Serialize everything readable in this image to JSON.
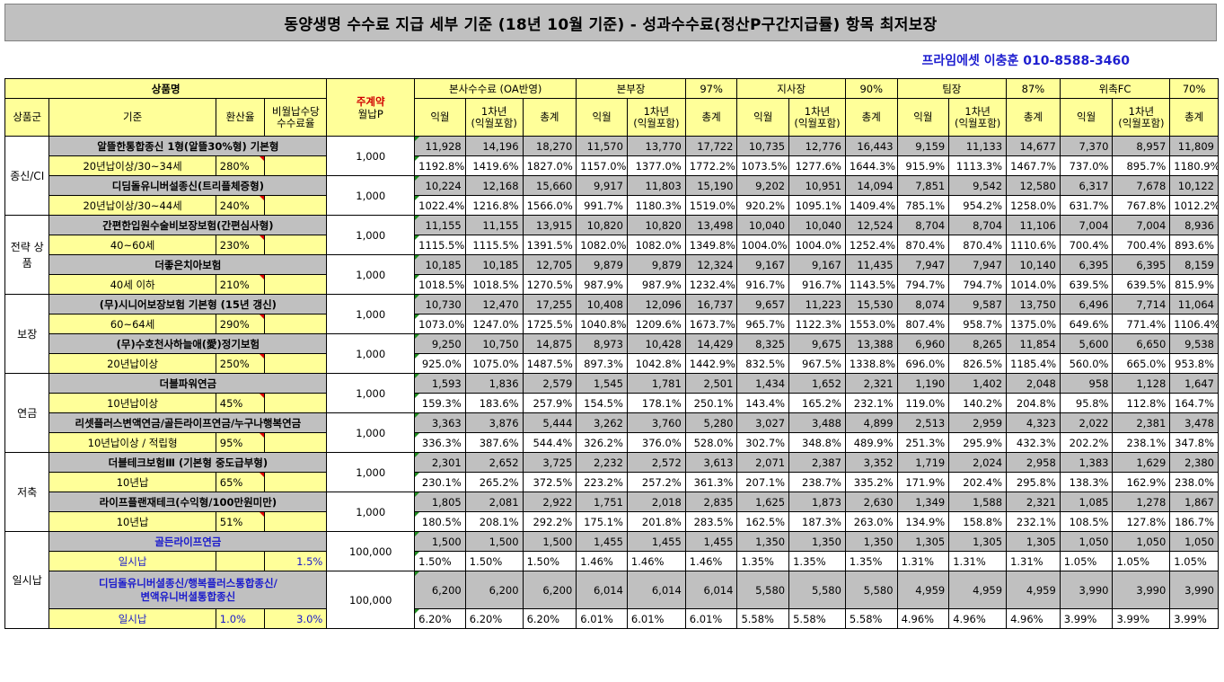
{
  "title": "동양생명 수수료 지급 세부 기준 (18년 10월 기준) - 성과수수료(정산P구간지급률) 항목 최저보장",
  "contact": "프라임에셋 이충훈 010-8588-3460",
  "header": {
    "product_name": "상품명",
    "premium_label_1": "주계약",
    "premium_label_2": "월납P",
    "hq": "본사수수료 (OA반영)",
    "bonbu": "본부장",
    "bonbu_pct": "97%",
    "jisa": "지사장",
    "jisa_pct": "90%",
    "team": "팀장",
    "team_pct": "87%",
    "fc": "위촉FC",
    "fc_pct": "70%",
    "group": "상품군",
    "basis": "기준",
    "conv": "환산율",
    "nonmonthly_1": "비월납수당",
    "nonmonthly_2": "수수료율",
    "ikwol": "익월",
    "year1_1": "1차년",
    "year1_2": "(익월포함)",
    "total": "총계"
  },
  "groups": [
    {
      "name": "종신/CI"
    },
    {
      "name": "전략 상품"
    },
    {
      "name": "보장"
    },
    {
      "name": "연금"
    },
    {
      "name": "저축"
    },
    {
      "name": "일시납"
    }
  ],
  "rows": [
    {
      "name": "알뜰한통합종신 1형(알뜰30%형) 기본형",
      "basis": "20년납이상/30~34세",
      "conv": "280%",
      "extra": "",
      "prem": "1,000",
      "amt": [
        "11,928",
        "14,196",
        "18,270",
        "11,570",
        "13,770",
        "17,722",
        "10,735",
        "12,776",
        "16,443",
        "9,159",
        "11,133",
        "14,677",
        "7,370",
        "8,957",
        "11,809"
      ],
      "pct": [
        "1192.8%",
        "1419.6%",
        "1827.0%",
        "1157.0%",
        "1377.0%",
        "1772.2%",
        "1073.5%",
        "1277.6%",
        "1644.3%",
        "915.9%",
        "1113.3%",
        "1467.7%",
        "737.0%",
        "895.7%",
        "1180.9%"
      ]
    },
    {
      "name": "디딤돌유니버설종신(트리플체증형)",
      "basis": "20년납이상/30~44세",
      "conv": "240%",
      "extra": "",
      "prem": "1,000",
      "amt": [
        "10,224",
        "12,168",
        "15,660",
        "9,917",
        "11,803",
        "15,190",
        "9,202",
        "10,951",
        "14,094",
        "7,851",
        "9,542",
        "12,580",
        "6,317",
        "7,678",
        "10,122"
      ],
      "pct": [
        "1022.4%",
        "1216.8%",
        "1566.0%",
        "991.7%",
        "1180.3%",
        "1519.0%",
        "920.2%",
        "1095.1%",
        "1409.4%",
        "785.1%",
        "954.2%",
        "1258.0%",
        "631.7%",
        "767.8%",
        "1012.2%"
      ]
    },
    {
      "name": "간편한입원수술비보장보험(간편심사형)",
      "basis": "40~60세",
      "conv": "230%",
      "extra": "",
      "prem": "1,000",
      "amt": [
        "11,155",
        "11,155",
        "13,915",
        "10,820",
        "10,820",
        "13,498",
        "10,040",
        "10,040",
        "12,524",
        "8,704",
        "8,704",
        "11,106",
        "7,004",
        "7,004",
        "8,936"
      ],
      "pct": [
        "1115.5%",
        "1115.5%",
        "1391.5%",
        "1082.0%",
        "1082.0%",
        "1349.8%",
        "1004.0%",
        "1004.0%",
        "1252.4%",
        "870.4%",
        "870.4%",
        "1110.6%",
        "700.4%",
        "700.4%",
        "893.6%"
      ]
    },
    {
      "name": "더좋은치아보험",
      "basis": "40세 이하",
      "conv": "210%",
      "extra": "",
      "prem": "1,000",
      "amt": [
        "10,185",
        "10,185",
        "12,705",
        "9,879",
        "9,879",
        "12,324",
        "9,167",
        "9,167",
        "11,435",
        "7,947",
        "7,947",
        "10,140",
        "6,395",
        "6,395",
        "8,159"
      ],
      "pct": [
        "1018.5%",
        "1018.5%",
        "1270.5%",
        "987.9%",
        "987.9%",
        "1232.4%",
        "916.7%",
        "916.7%",
        "1143.5%",
        "794.7%",
        "794.7%",
        "1014.0%",
        "639.5%",
        "639.5%",
        "815.9%"
      ]
    },
    {
      "name": "(무)시니어보장보험 기본형 (15년 갱신)",
      "basis": "60~64세",
      "conv": "290%",
      "extra": "",
      "prem": "1,000",
      "amt": [
        "10,730",
        "12,470",
        "17,255",
        "10,408",
        "12,096",
        "16,737",
        "9,657",
        "11,223",
        "15,530",
        "8,074",
        "9,587",
        "13,750",
        "6,496",
        "7,714",
        "11,064"
      ],
      "pct": [
        "1073.0%",
        "1247.0%",
        "1725.5%",
        "1040.8%",
        "1209.6%",
        "1673.7%",
        "965.7%",
        "1122.3%",
        "1553.0%",
        "807.4%",
        "958.7%",
        "1375.0%",
        "649.6%",
        "771.4%",
        "1106.4%"
      ]
    },
    {
      "name": "(무)수호천사하늘애(愛)정기보험",
      "basis": "20년납이상",
      "conv": "250%",
      "extra": "",
      "prem": "1,000",
      "amt": [
        "9,250",
        "10,750",
        "14,875",
        "8,973",
        "10,428",
        "14,429",
        "8,325",
        "9,675",
        "13,388",
        "6,960",
        "8,265",
        "11,854",
        "5,600",
        "6,650",
        "9,538"
      ],
      "pct": [
        "925.0%",
        "1075.0%",
        "1487.5%",
        "897.3%",
        "1042.8%",
        "1442.9%",
        "832.5%",
        "967.5%",
        "1338.8%",
        "696.0%",
        "826.5%",
        "1185.4%",
        "560.0%",
        "665.0%",
        "953.8%"
      ]
    },
    {
      "name": "더블파워연금",
      "basis": "10년납이상",
      "conv": "45%",
      "extra": "",
      "prem": "1,000",
      "amt": [
        "1,593",
        "1,836",
        "2,579",
        "1,545",
        "1,781",
        "2,501",
        "1,434",
        "1,652",
        "2,321",
        "1,190",
        "1,402",
        "2,048",
        "958",
        "1,128",
        "1,647"
      ],
      "pct": [
        "159.3%",
        "183.6%",
        "257.9%",
        "154.5%",
        "178.1%",
        "250.1%",
        "143.4%",
        "165.2%",
        "232.1%",
        "119.0%",
        "140.2%",
        "204.8%",
        "95.8%",
        "112.8%",
        "164.7%"
      ]
    },
    {
      "name": "리셋플러스변액연금/골든라이프연금/누구나행복연금",
      "basis": "10년납이상 / 적립형",
      "conv": "95%",
      "extra": "",
      "prem": "1,000",
      "amt": [
        "3,363",
        "3,876",
        "5,444",
        "3,262",
        "3,760",
        "5,280",
        "3,027",
        "3,488",
        "4,899",
        "2,513",
        "2,959",
        "4,323",
        "2,022",
        "2,381",
        "3,478"
      ],
      "pct": [
        "336.3%",
        "387.6%",
        "544.4%",
        "326.2%",
        "376.0%",
        "528.0%",
        "302.7%",
        "348.8%",
        "489.9%",
        "251.3%",
        "295.9%",
        "432.3%",
        "202.2%",
        "238.1%",
        "347.8%"
      ]
    },
    {
      "name": "더블테크보험Ⅲ (기본형 중도급부형)",
      "basis": "10년납",
      "conv": "65%",
      "extra": "",
      "prem": "1,000",
      "amt": [
        "2,301",
        "2,652",
        "3,725",
        "2,232",
        "2,572",
        "3,613",
        "2,071",
        "2,387",
        "3,352",
        "1,719",
        "2,024",
        "2,958",
        "1,383",
        "1,629",
        "2,380"
      ],
      "pct": [
        "230.1%",
        "265.2%",
        "372.5%",
        "223.2%",
        "257.2%",
        "361.3%",
        "207.1%",
        "238.7%",
        "335.2%",
        "171.9%",
        "202.4%",
        "295.8%",
        "138.3%",
        "162.9%",
        "238.0%"
      ]
    },
    {
      "name": "라이프플랜재테크(수익형/100만원미만)",
      "basis": "10년납",
      "conv": "51%",
      "extra": "",
      "prem": "1,000",
      "amt": [
        "1,805",
        "2,081",
        "2,922",
        "1,751",
        "2,018",
        "2,835",
        "1,625",
        "1,873",
        "2,630",
        "1,349",
        "1,588",
        "2,321",
        "1,085",
        "1,278",
        "1,867"
      ],
      "pct": [
        "180.5%",
        "208.1%",
        "292.2%",
        "175.1%",
        "201.8%",
        "283.5%",
        "162.5%",
        "187.3%",
        "263.0%",
        "134.9%",
        "158.8%",
        "232.1%",
        "108.5%",
        "127.8%",
        "186.7%"
      ]
    },
    {
      "name": "골든라이프연금",
      "basis": "일시납",
      "conv": "",
      "extra": "1.5%",
      "prem": "100,000",
      "amt": [
        "1,500",
        "1,500",
        "1,500",
        "1,455",
        "1,455",
        "1,455",
        "1,350",
        "1,350",
        "1,350",
        "1,305",
        "1,305",
        "1,305",
        "1,050",
        "1,050",
        "1,050"
      ],
      "pct": [
        "1.50%",
        "1.50%",
        "1.50%",
        "1.46%",
        "1.46%",
        "1.46%",
        "1.35%",
        "1.35%",
        "1.35%",
        "1.31%",
        "1.31%",
        "1.31%",
        "1.05%",
        "1.05%",
        "1.05%"
      ]
    },
    {
      "name": "디딤돌유니버셜종신/행복플러스통합종신/",
      "name2": "변액유니버셜통합종신",
      "basis": "일시납",
      "conv": "1.0%",
      "extra": "3.0%",
      "prem": "100,000",
      "amt": [
        "6,200",
        "6,200",
        "6,200",
        "6,014",
        "6,014",
        "6,014",
        "5,580",
        "5,580",
        "5,580",
        "4,959",
        "4,959",
        "4,959",
        "3,990",
        "3,990",
        "3,990"
      ],
      "pct": [
        "6.20%",
        "6.20%",
        "6.20%",
        "6.01%",
        "6.01%",
        "6.01%",
        "5.58%",
        "5.58%",
        "5.58%",
        "4.96%",
        "4.96%",
        "4.96%",
        "3.99%",
        "3.99%",
        "3.99%"
      ]
    }
  ]
}
